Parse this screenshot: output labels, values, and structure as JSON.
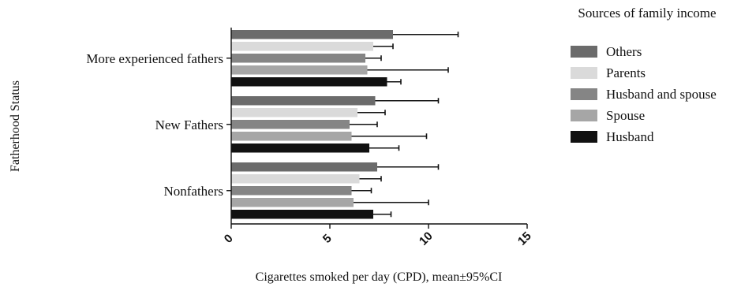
{
  "chart_data": {
    "type": "bar",
    "orientation": "horizontal",
    "xlabel": "Cigarettes smoked per day (CPD), mean±95%CI",
    "ylabel": "Fatherhood Status",
    "xlim": [
      0,
      15
    ],
    "xticks": [
      "0",
      "5",
      "10",
      "15"
    ],
    "categories": [
      "More experienced fathers",
      "New Fathers",
      "Nonfathers"
    ],
    "legend_title": "Sources of family income",
    "legend_position": "right",
    "series": [
      {
        "name": "Others",
        "color": "#6b6b6b",
        "values": [
          8.2,
          7.3,
          7.4
        ],
        "ci_upper": [
          11.5,
          10.5,
          10.5
        ]
      },
      {
        "name": "Parents",
        "color": "#dadada",
        "values": [
          7.2,
          6.4,
          6.5
        ],
        "ci_upper": [
          8.2,
          7.8,
          7.6
        ]
      },
      {
        "name": "Husband and spouse",
        "color": "#858585",
        "values": [
          6.8,
          6.0,
          6.1
        ],
        "ci_upper": [
          7.6,
          7.4,
          7.1
        ]
      },
      {
        "name": "Spouse",
        "color": "#a6a6a6",
        "values": [
          6.9,
          6.1,
          6.2
        ],
        "ci_upper": [
          11.0,
          9.9,
          10.0
        ]
      },
      {
        "name": "Husband",
        "color": "#111111",
        "values": [
          7.9,
          7.0,
          7.2
        ],
        "ci_upper": [
          8.6,
          8.5,
          8.1
        ]
      }
    ]
  }
}
